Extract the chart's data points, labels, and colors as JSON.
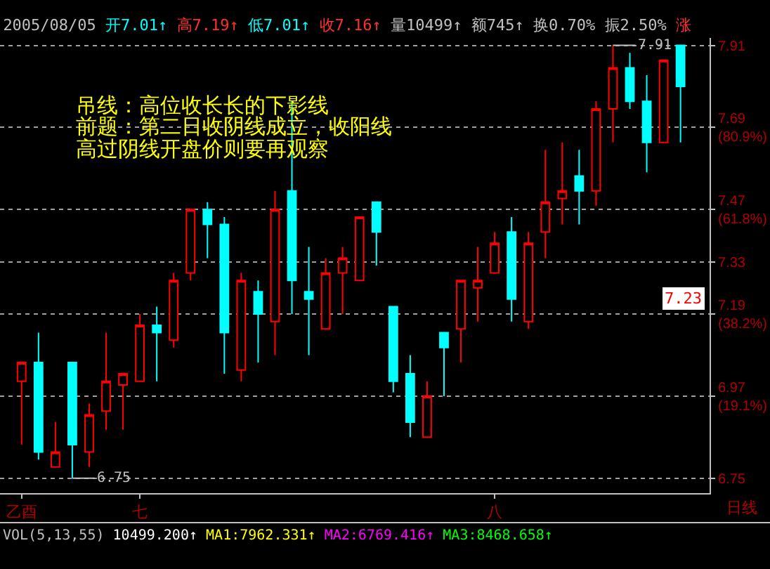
{
  "chart_data": {
    "type": "candlestick",
    "title": "2005/08/05 开7.01↑ 高7.19↑ 低7.01↑ 收7.16↑ 量10499↑ 额745↑ 换0.70% 振2.50% 涨",
    "xlabel": "日线",
    "categories": [
      "乙酉",
      null,
      null,
      null,
      null,
      null,
      null,
      "七",
      null,
      null,
      null,
      null,
      null,
      null,
      null,
      null,
      null,
      null,
      null,
      null,
      null,
      null,
      null,
      null,
      null,
      null,
      null,
      null,
      "八",
      null,
      null,
      null,
      null,
      null,
      null,
      null,
      null,
      null,
      null,
      null
    ],
    "ohlc": [
      [
        7.01,
        7.06,
        6.84,
        7.06
      ],
      [
        7.06,
        7.14,
        6.8,
        6.82
      ],
      [
        6.78,
        6.9,
        6.78,
        6.82
      ],
      [
        7.06,
        7.06,
        6.75,
        6.84
      ],
      [
        6.82,
        6.95,
        6.78,
        6.92
      ],
      [
        6.93,
        7.14,
        6.88,
        7.01
      ],
      [
        7.0,
        7.03,
        6.88,
        7.03
      ],
      [
        7.01,
        7.19,
        7.01,
        7.16
      ],
      [
        7.16,
        7.21,
        7.01,
        7.14
      ],
      [
        7.12,
        7.3,
        7.1,
        7.28
      ],
      [
        7.3,
        7.47,
        7.28,
        7.47
      ],
      [
        7.47,
        7.49,
        7.34,
        7.43
      ],
      [
        7.43,
        7.45,
        7.03,
        7.14
      ],
      [
        7.04,
        7.3,
        7.01,
        7.28
      ],
      [
        7.25,
        7.28,
        7.06,
        7.19
      ],
      [
        7.17,
        7.52,
        7.08,
        7.47
      ],
      [
        7.52,
        7.76,
        7.19,
        7.28
      ],
      [
        7.25,
        7.37,
        7.08,
        7.23
      ],
      [
        7.15,
        7.34,
        7.15,
        7.3
      ],
      [
        7.3,
        7.37,
        7.19,
        7.34
      ],
      [
        7.28,
        7.45,
        7.28,
        7.45
      ],
      [
        7.49,
        7.49,
        7.32,
        7.41
      ],
      [
        7.21,
        7.21,
        6.98,
        7.01
      ],
      [
        7.03,
        7.08,
        6.86,
        6.9
      ],
      [
        6.86,
        7.01,
        6.86,
        6.97
      ],
      [
        7.14,
        7.14,
        6.97,
        7.1
      ],
      [
        7.15,
        7.28,
        7.06,
        7.28
      ],
      [
        7.26,
        7.37,
        7.17,
        7.28
      ],
      [
        7.3,
        7.41,
        7.3,
        7.38
      ],
      [
        7.41,
        7.45,
        7.17,
        7.23
      ],
      [
        7.17,
        7.41,
        7.15,
        7.38
      ],
      [
        7.41,
        7.63,
        7.34,
        7.49
      ],
      [
        7.5,
        7.65,
        7.43,
        7.52
      ],
      [
        7.56,
        7.63,
        7.43,
        7.52
      ],
      [
        7.52,
        7.76,
        7.48,
        7.74
      ],
      [
        7.74,
        7.91,
        7.65,
        7.85
      ],
      [
        7.85,
        7.89,
        7.74,
        7.76
      ],
      [
        7.76,
        7.83,
        7.57,
        7.65
      ],
      [
        7.65,
        7.87,
        7.65,
        7.87
      ],
      [
        7.91,
        7.91,
        7.65,
        7.8
      ]
    ],
    "colors": [
      "#ff0000",
      "#00ffff",
      "#ff0000",
      "#00ffff",
      "#ff0000",
      "#ff0000",
      "#ff0000",
      "#ff0000",
      "#00ffff",
      "#ff0000",
      "#ff0000",
      "#00ffff",
      "#00ffff",
      "#ff0000",
      "#00ffff",
      "#ff0000",
      "#00ffff",
      "#00ffff",
      "#ff0000",
      "#ff0000",
      "#ff0000",
      "#00ffff",
      "#00ffff",
      "#00ffff",
      "#ff0000",
      "#00ffff",
      "#ff0000",
      "#ff0000",
      "#ff0000",
      "#00ffff",
      "#ff0000",
      "#ff0000",
      "#ff0000",
      "#00ffff",
      "#ff0000",
      "#ff0000",
      "#00ffff",
      "#00ffff",
      "#ff0000",
      "#00ffff"
    ],
    "ylim": [
      6.71,
      7.93
    ],
    "yticks": [
      7.91,
      {
        "value": 7.69,
        "label": "7.69\n(80.9%)"
      },
      {
        "value": 7.47,
        "label": "7.47\n(61.8%)"
      },
      7.33,
      {
        "value": 7.19,
        "label": "7.19\n(38.2%)"
      },
      {
        "value": 6.97,
        "label": "6.97\n(19.1%)"
      },
      6.75
    ],
    "grid": "y",
    "annotations": [
      "吊线：高位收长长的下影线",
      "前题：第二日收阴线成立，收阳线",
      "高过阴线开盘价则要再观察",
      "7.91",
      "6.75",
      {
        "text": "7.23",
        "y": 7.23
      },
      "VOL(5,13,55) 10499.200↑ MA1:7962.331↑ MA2:6769.416↑ MA3:8468.658↑"
    ]
  }
}
